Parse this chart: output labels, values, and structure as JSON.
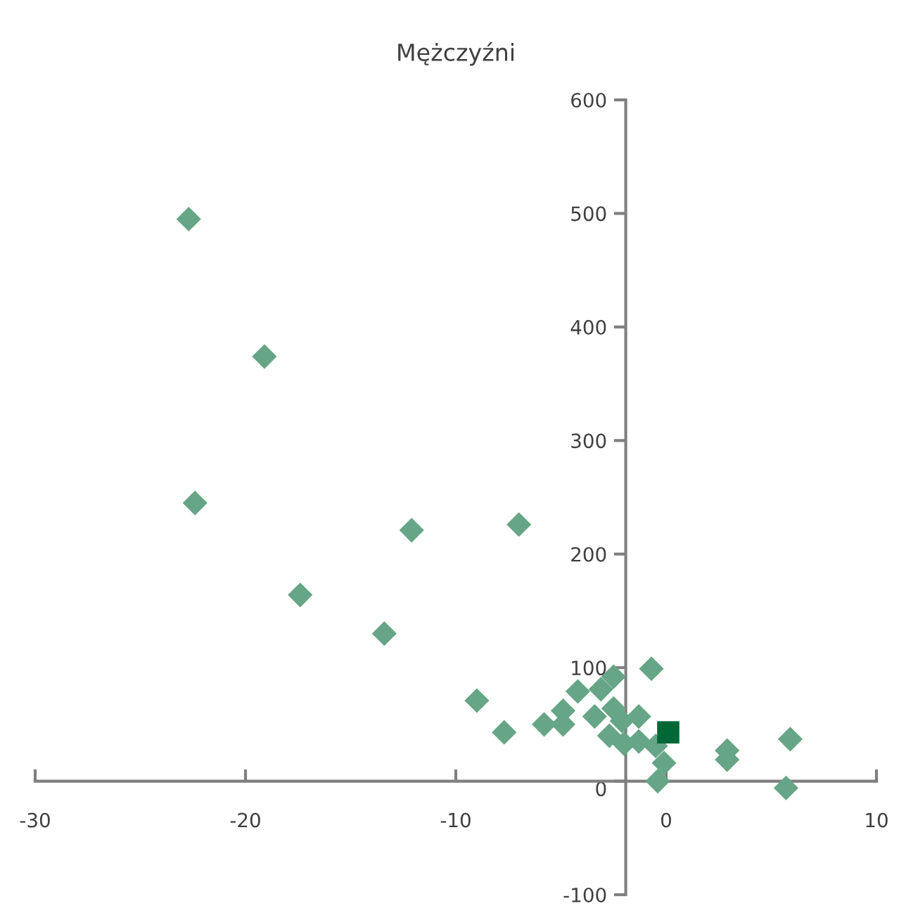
{
  "chart_data": {
    "type": "scatter",
    "title": "Mężczyźni",
    "xlim": [
      -30,
      10
    ],
    "xticks": [
      -30,
      -20,
      -10,
      0,
      10
    ],
    "ylim": [
      -100,
      600
    ],
    "yticks": [
      -100,
      0,
      100,
      200,
      300,
      400,
      500,
      600
    ],
    "grid": false,
    "legend": false,
    "series": [
      {
        "color": "#66a586",
        "marker": "diamond",
        "x": [
          -22.7,
          -19.1,
          -22.4,
          -17.4,
          -12.1,
          -7.0,
          -13.4,
          -9.0,
          -7.7,
          -5.8,
          -4.9,
          -4.9,
          -4.2,
          -3.4,
          -3.1,
          -2.5,
          -2.7,
          -2.5,
          -2.1,
          -2.0,
          -1.3,
          -1.3,
          -0.7,
          -0.5,
          -0.1,
          -0.4,
          2.9,
          2.9,
          5.9,
          5.7
        ],
        "values": [
          495,
          374,
          245,
          164,
          221,
          226,
          130,
          71,
          43,
          50,
          62,
          50,
          79,
          57,
          81,
          92,
          40,
          64,
          53,
          33,
          57,
          35,
          99,
          31,
          16,
          0,
          27,
          19,
          37,
          -6
        ]
      },
      {
        "color": "#006837",
        "marker": "square",
        "x": [
          0.1
        ],
        "values": [
          43
        ]
      }
    ]
  }
}
